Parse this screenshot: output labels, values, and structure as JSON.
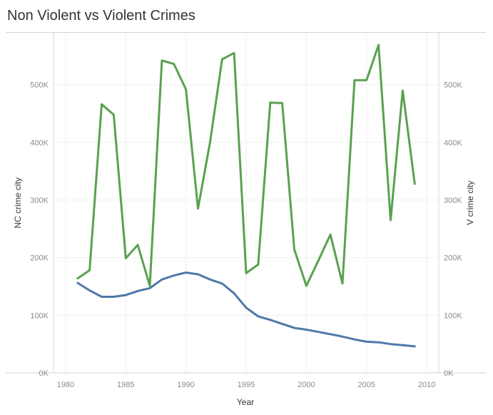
{
  "title": "Non Violent vs Violent Crimes",
  "chart_data": {
    "type": "line",
    "title": "Non Violent vs Violent Crimes",
    "xlabel": "Year",
    "ylabel_left": "NC crime city",
    "ylabel_right": "V crime city",
    "xlim": [
      1979,
      2011
    ],
    "ylim": [
      0,
      590000
    ],
    "x_ticks": [
      1980,
      1985,
      1990,
      1995,
      2000,
      2005,
      2010
    ],
    "y_ticks": [
      0,
      100000,
      200000,
      300000,
      400000,
      500000
    ],
    "y_tick_labels": [
      "0K",
      "100K",
      "200K",
      "300K",
      "400K",
      "500K"
    ],
    "grid": true,
    "x": [
      1981,
      1982,
      1983,
      1984,
      1985,
      1986,
      1987,
      1988,
      1989,
      1990,
      1991,
      1992,
      1993,
      1994,
      1995,
      1996,
      1997,
      1998,
      1999,
      2000,
      2001,
      2002,
      2003,
      2004,
      2005,
      2006,
      2007,
      2008,
      2009
    ],
    "series": [
      {
        "name": "NC crime city",
        "axis": "left",
        "color": "#4e79a7",
        "values": [
          156000,
          143000,
          132000,
          132000,
          135000,
          142000,
          147000,
          162000,
          169000,
          174000,
          171000,
          162000,
          155000,
          138000,
          113000,
          98000,
          92000,
          85000,
          78000,
          75000,
          71000,
          67000,
          63000,
          58000,
          54000,
          53000,
          50000,
          48000,
          46000
        ]
      },
      {
        "name": "V crime city",
        "axis": "right",
        "color": "#59a14f",
        "values": [
          164000,
          178000,
          466000,
          448000,
          199000,
          222000,
          151000,
          542000,
          536000,
          492000,
          285000,
          400000,
          544000,
          555000,
          173000,
          188000,
          469000,
          468000,
          214000,
          151000,
          195000,
          240000,
          155000,
          508000,
          508000,
          569000,
          265000,
          490000,
          328000
        ]
      }
    ]
  }
}
